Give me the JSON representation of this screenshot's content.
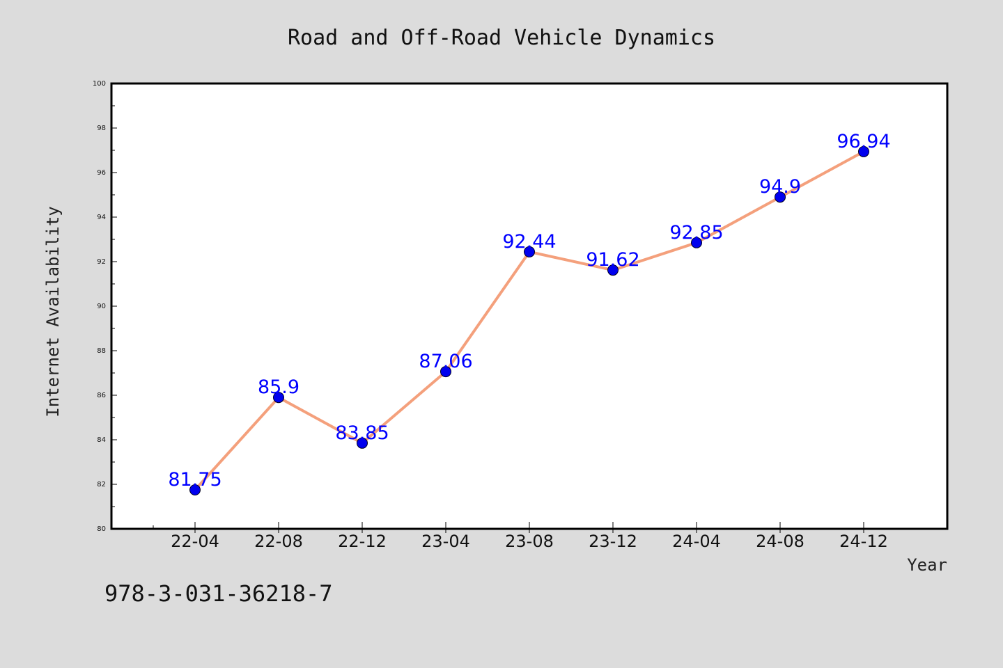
{
  "chart_data": {
    "type": "line",
    "title": "Road and Off-Road Vehicle Dynamics",
    "xlabel": "Year",
    "ylabel": "Internet Availability",
    "categories": [
      "22-04",
      "22-08",
      "22-12",
      "23-04",
      "23-08",
      "23-12",
      "24-04",
      "24-08",
      "24-12"
    ],
    "series": [
      {
        "values": [
          81.75,
          85.9,
          83.85,
          87.06,
          92.44,
          91.62,
          92.85,
          94.9,
          96.94
        ]
      }
    ],
    "data_labels": [
      "81.75",
      "85.9",
      "83.85",
      "87.06",
      "92.44",
      "91.62",
      "92.85",
      "94.9",
      "96.94"
    ],
    "ylim": [
      80,
      100
    ],
    "y_ticks": [
      "80",
      "82",
      "84",
      "86",
      "88",
      "90",
      "92",
      "94",
      "96",
      "98",
      "100"
    ],
    "grid": false,
    "legend": "none",
    "colors": {
      "background": "#dcdcdc",
      "plot_background": "#ffffff",
      "line": "#f4a07c",
      "marker": "#0000ee",
      "data_label": "#0000ff",
      "frame": "#000000"
    }
  },
  "footnote": "978-3-031-36218-7"
}
